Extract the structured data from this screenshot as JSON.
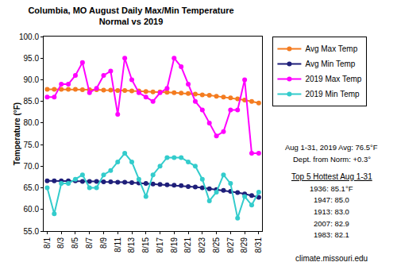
{
  "chart_data": {
    "type": "line",
    "title": "Columbia, MO August Daily Max/Min Temperature",
    "subtitle": "Normal vs 2019",
    "y_label": "Temperature (°F)",
    "categories": [
      "8/1",
      null,
      "8/3",
      null,
      "8/5",
      null,
      "8/7",
      null,
      "8/9",
      null,
      "8/11",
      null,
      "8/13",
      null,
      "8/15",
      null,
      "8/17",
      null,
      "8/19",
      null,
      "8/21",
      null,
      "8/23",
      null,
      "8/25",
      null,
      "8/27",
      null,
      "8/29",
      null,
      "8/31"
    ],
    "series": [
      {
        "name": "Avg Max Temp",
        "color": "#f47c20",
        "marker": "circle",
        "line_style": "solid",
        "values": [
          87.8,
          87.8,
          87.8,
          87.8,
          87.8,
          87.7,
          87.7,
          87.7,
          87.6,
          87.6,
          87.5,
          87.5,
          87.4,
          87.4,
          87.3,
          87.2,
          87.2,
          87.1,
          87.0,
          86.9,
          86.8,
          86.7,
          86.5,
          86.4,
          86.2,
          86.0,
          85.8,
          85.6,
          85.3,
          85.0,
          84.6
        ]
      },
      {
        "name": "Avg Min Temp",
        "color": "#1f1f7a",
        "marker": "circle",
        "line_style": "solid",
        "values": [
          66.6,
          66.6,
          66.6,
          66.6,
          66.6,
          66.5,
          66.5,
          66.5,
          66.4,
          66.4,
          66.3,
          66.3,
          66.2,
          66.1,
          66.0,
          65.9,
          65.8,
          65.7,
          65.6,
          65.5,
          65.3,
          65.2,
          65.0,
          64.8,
          64.6,
          64.4,
          64.2,
          63.9,
          63.6,
          63.2,
          62.8
        ]
      },
      {
        "name": "2019 Max Temp",
        "color": "#ff00ff",
        "marker": "circle",
        "line_style": "solid",
        "values": [
          86,
          86,
          89,
          89,
          91,
          94,
          87,
          88,
          91,
          92,
          82,
          95,
          90,
          87,
          86,
          85,
          87,
          88,
          95,
          93,
          89,
          85,
          83,
          80,
          77,
          78,
          83,
          83,
          90,
          73,
          73
        ]
      },
      {
        "name": "2019 Min Temp",
        "color": "#33cccc",
        "marker": "circle",
        "line_style": "solid",
        "values": [
          65,
          59,
          66,
          66,
          67,
          68,
          65,
          65,
          68,
          69,
          71,
          73,
          71,
          67,
          63,
          68,
          70,
          72,
          72,
          72,
          71,
          70,
          67,
          62,
          64,
          68,
          66,
          58,
          63,
          61,
          64
        ]
      }
    ],
    "ylim": [
      55,
      100
    ],
    "yticks": [
      {
        "value": 55,
        "label": "55.0"
      },
      {
        "value": 60,
        "label": "60.0"
      },
      {
        "value": 65,
        "label": "65.0"
      },
      {
        "value": 70,
        "label": "70.0"
      },
      {
        "value": 75,
        "label": "75.0"
      },
      {
        "value": 80,
        "label": "80.0"
      },
      {
        "value": 85,
        "label": "85.0"
      },
      {
        "value": 90,
        "label": "90.0"
      },
      {
        "value": 95,
        "label": "95.0"
      },
      {
        "value": 100,
        "label": "100.0"
      }
    ],
    "grid": false,
    "legend": "right",
    "annotations": [
      "Aug 1-31, 2019 Avg: 76.5°F",
      "Dept. from Norm: +0.3°",
      "Top 5 Hottest Aug 1-31",
      "1936: 85.1°F",
      "1947: 85.0",
      "1913: 83.0",
      "2007: 82.9",
      "1983: 82.1",
      "climate.missouri.edu"
    ]
  }
}
